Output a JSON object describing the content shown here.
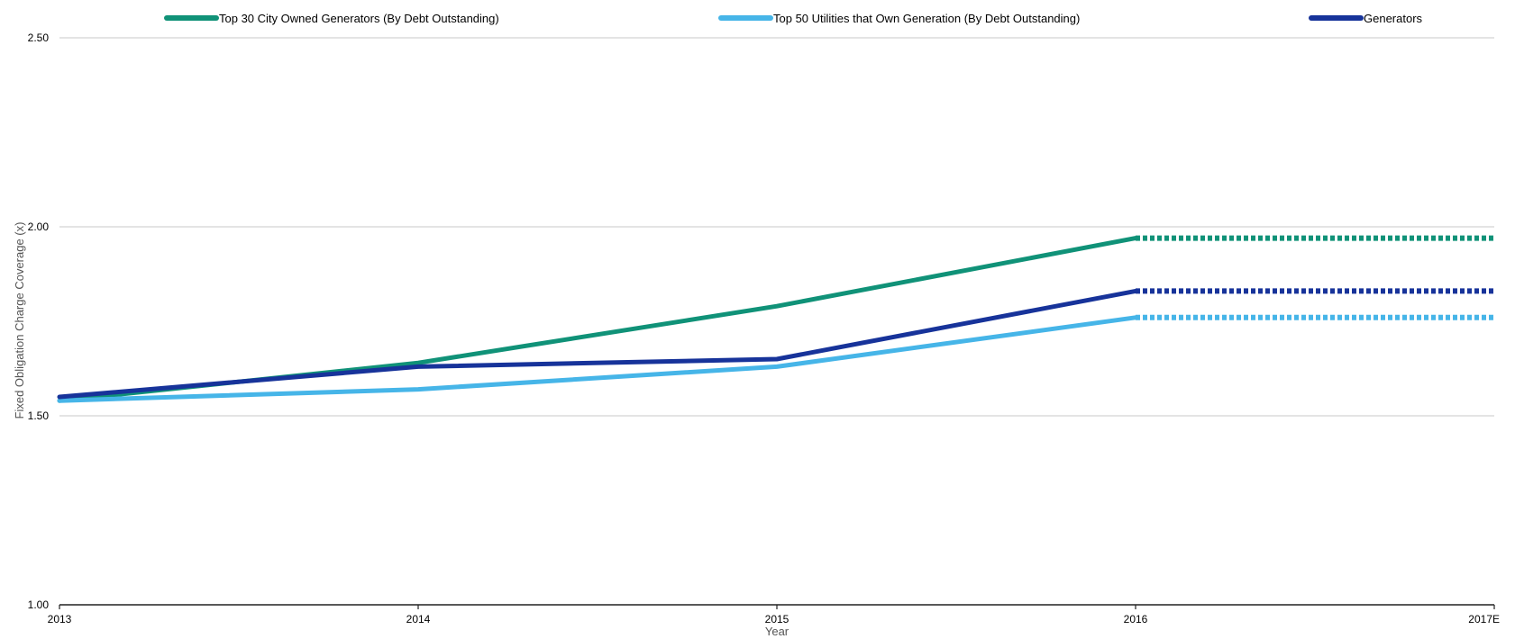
{
  "chart_data": {
    "type": "line",
    "xlabel": "Year",
    "ylabel": "Fixed Obligation Charge Coverage (x)",
    "categories": [
      "2013",
      "2014",
      "2015",
      "2016",
      "2017E"
    ],
    "ylim": [
      1.0,
      2.5
    ],
    "y_ticks": [
      1.0,
      1.5,
      2.0,
      2.5
    ],
    "y_tick_labels": [
      "1.00",
      "1.50",
      "2.00",
      "2.50"
    ],
    "grid": true,
    "legend_position": "top",
    "projection": "2017E values shown as dotted line (held flat from 2016)",
    "series": [
      {
        "name": "Top 30 City Owned Generators (By Debt Outstanding)",
        "color": "#109278",
        "values": [
          1.54,
          1.64,
          1.79,
          1.97,
          1.97
        ]
      },
      {
        "name": "Top 50 Utilities that Own Generation (By Debt Outstanding)",
        "color": "#46b5e8",
        "values": [
          1.54,
          1.57,
          1.63,
          1.76,
          1.76
        ]
      },
      {
        "name": "Generators",
        "color": "#17339a",
        "values": [
          1.55,
          1.63,
          1.65,
          1.83,
          1.83
        ]
      }
    ]
  }
}
